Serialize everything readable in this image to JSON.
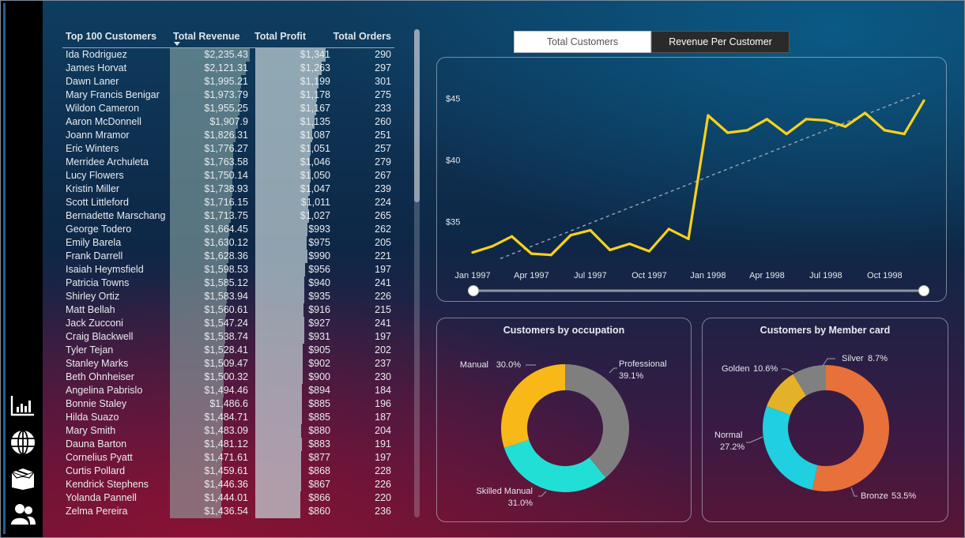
{
  "nav": {
    "items": [
      {
        "icon": "bar-chart-icon"
      },
      {
        "icon": "globe-icon"
      },
      {
        "icon": "box-icon"
      },
      {
        "icon": "users-icon"
      }
    ]
  },
  "table": {
    "headers": [
      "Top 100 Customers",
      "Total Revenue",
      "Total Profit",
      "Total Orders"
    ],
    "max_revenue": 2235.43,
    "max_profit": 1341,
    "rows": [
      {
        "name": "Ida Rodriguez",
        "revenue": "$2,235.43",
        "rev": 2235.43,
        "profit": "$1,341",
        "pro": 1341,
        "orders": "290"
      },
      {
        "name": "James Horvat",
        "revenue": "$2,121.31",
        "rev": 2121.31,
        "profit": "$1,263",
        "pro": 1263,
        "orders": "297"
      },
      {
        "name": "Dawn Laner",
        "revenue": "$1,995.21",
        "rev": 1995.21,
        "profit": "$1,199",
        "pro": 1199,
        "orders": "301"
      },
      {
        "name": "Mary Francis Benigar",
        "revenue": "$1,973.79",
        "rev": 1973.79,
        "profit": "$1,178",
        "pro": 1178,
        "orders": "275"
      },
      {
        "name": "Wildon Cameron",
        "revenue": "$1,955.25",
        "rev": 1955.25,
        "profit": "$1,167",
        "pro": 1167,
        "orders": "233"
      },
      {
        "name": "Aaron McDonnell",
        "revenue": "$1,907.9",
        "rev": 1907.9,
        "profit": "$1,135",
        "pro": 1135,
        "orders": "260"
      },
      {
        "name": "Joann Mramor",
        "revenue": "$1,826.31",
        "rev": 1826.31,
        "profit": "$1,087",
        "pro": 1087,
        "orders": "251"
      },
      {
        "name": "Eric Winters",
        "revenue": "$1,776.27",
        "rev": 1776.27,
        "profit": "$1,051",
        "pro": 1051,
        "orders": "257"
      },
      {
        "name": "Merridee Archuleta",
        "revenue": "$1,763.58",
        "rev": 1763.58,
        "profit": "$1,046",
        "pro": 1046,
        "orders": "279"
      },
      {
        "name": "Lucy Flowers",
        "revenue": "$1,750.14",
        "rev": 1750.14,
        "profit": "$1,050",
        "pro": 1050,
        "orders": "267"
      },
      {
        "name": "Kristin Miller",
        "revenue": "$1,738.93",
        "rev": 1738.93,
        "profit": "$1,047",
        "pro": 1047,
        "orders": "239"
      },
      {
        "name": "Scott Littleford",
        "revenue": "$1,716.15",
        "rev": 1716.15,
        "profit": "$1,011",
        "pro": 1011,
        "orders": "224"
      },
      {
        "name": "Bernadette Marschang",
        "revenue": "$1,713.75",
        "rev": 1713.75,
        "profit": "$1,027",
        "pro": 1027,
        "orders": "265"
      },
      {
        "name": "George Todero",
        "revenue": "$1,664.45",
        "rev": 1664.45,
        "profit": "$993",
        "pro": 993,
        "orders": "262"
      },
      {
        "name": "Emily Barela",
        "revenue": "$1,630.12",
        "rev": 1630.12,
        "profit": "$975",
        "pro": 975,
        "orders": "205"
      },
      {
        "name": "Frank Darrell",
        "revenue": "$1,628.36",
        "rev": 1628.36,
        "profit": "$990",
        "pro": 990,
        "orders": "221"
      },
      {
        "name": "Isaiah Heymsfield",
        "revenue": "$1,598.53",
        "rev": 1598.53,
        "profit": "$956",
        "pro": 956,
        "orders": "197"
      },
      {
        "name": "Patricia Towns",
        "revenue": "$1,585.12",
        "rev": 1585.12,
        "profit": "$940",
        "pro": 940,
        "orders": "241"
      },
      {
        "name": "Shirley Ortiz",
        "revenue": "$1,583.94",
        "rev": 1583.94,
        "profit": "$935",
        "pro": 935,
        "orders": "226"
      },
      {
        "name": "Matt Bellah",
        "revenue": "$1,560.61",
        "rev": 1560.61,
        "profit": "$916",
        "pro": 916,
        "orders": "215"
      },
      {
        "name": "Jack Zucconi",
        "revenue": "$1,547.24",
        "rev": 1547.24,
        "profit": "$927",
        "pro": 927,
        "orders": "241"
      },
      {
        "name": "Craig Blackwell",
        "revenue": "$1,538.74",
        "rev": 1538.74,
        "profit": "$931",
        "pro": 931,
        "orders": "197"
      },
      {
        "name": "Tyler Tejan",
        "revenue": "$1,528.41",
        "rev": 1528.41,
        "profit": "$905",
        "pro": 905,
        "orders": "202"
      },
      {
        "name": "Stanley Marks",
        "revenue": "$1,509.47",
        "rev": 1509.47,
        "profit": "$902",
        "pro": 902,
        "orders": "237"
      },
      {
        "name": "Beth Ohnheiser",
        "revenue": "$1,500.32",
        "rev": 1500.32,
        "profit": "$900",
        "pro": 900,
        "orders": "230"
      },
      {
        "name": "Angelina Pabrislo",
        "revenue": "$1,494.46",
        "rev": 1494.46,
        "profit": "$894",
        "pro": 894,
        "orders": "184"
      },
      {
        "name": "Bonnie Staley",
        "revenue": "$1,486.6",
        "rev": 1486.6,
        "profit": "$885",
        "pro": 885,
        "orders": "196"
      },
      {
        "name": "Hilda Suazo",
        "revenue": "$1,484.71",
        "rev": 1484.71,
        "profit": "$885",
        "pro": 885,
        "orders": "187"
      },
      {
        "name": "Mary Smith",
        "revenue": "$1,483.09",
        "rev": 1483.09,
        "profit": "$880",
        "pro": 880,
        "orders": "204"
      },
      {
        "name": "Dauna Barton",
        "revenue": "$1,481.12",
        "rev": 1481.12,
        "profit": "$883",
        "pro": 883,
        "orders": "191"
      },
      {
        "name": "Cornelius Pyatt",
        "revenue": "$1,471.61",
        "rev": 1471.61,
        "profit": "$877",
        "pro": 877,
        "orders": "197"
      },
      {
        "name": "Curtis Pollard",
        "revenue": "$1,459.61",
        "rev": 1459.61,
        "profit": "$868",
        "pro": 868,
        "orders": "228"
      },
      {
        "name": "Kendrick Stephens",
        "revenue": "$1,446.36",
        "rev": 1446.36,
        "profit": "$867",
        "pro": 867,
        "orders": "226"
      },
      {
        "name": "Yolanda Pannell",
        "revenue": "$1,444.01",
        "rev": 1444.01,
        "profit": "$866",
        "pro": 866,
        "orders": "220"
      },
      {
        "name": "Zelma Pereira",
        "revenue": "$1,436.54",
        "rev": 1436.54,
        "profit": "$860",
        "pro": 860,
        "orders": "236"
      }
    ]
  },
  "toggle": {
    "total_customers": "Total Customers",
    "revenue_per_customer": "Revenue Per Customer"
  },
  "colors": {
    "line": "#f7d21a",
    "trend": "#9aa6b2",
    "professional": "#7f7f7f",
    "manual": "#f8b817",
    "skilled_manual": "#22dfd6",
    "bronze": "#e8703a",
    "normal": "#20cfe0",
    "golden": "#e3b228",
    "silver": "#808080"
  },
  "chart_data": [
    {
      "type": "line",
      "y_tick_labels": [
        "$35",
        "$40",
        "$45"
      ],
      "x_tick_labels": [
        "Jan 1997",
        "Apr 1997",
        "Jul 1997",
        "Oct 1997",
        "Jan 1998",
        "Apr 1998",
        "Jul 1998",
        "Oct 1998"
      ],
      "x": [
        "1997-01",
        "1997-02",
        "1997-03",
        "1997-04",
        "1997-05",
        "1997-06",
        "1997-07",
        "1997-08",
        "1997-09",
        "1997-10",
        "1997-11",
        "1997-12",
        "1998-01",
        "1998-02",
        "1998-03",
        "1998-04",
        "1998-05",
        "1998-06",
        "1998-07",
        "1998-08",
        "1998-09",
        "1998-10",
        "1998-11",
        "1998-12"
      ],
      "values": [
        32.5,
        33.0,
        33.8,
        32.4,
        32.3,
        33.9,
        34.3,
        32.7,
        33.2,
        32.6,
        34.4,
        33.6,
        43.6,
        42.2,
        42.4,
        43.3,
        42.1,
        43.3,
        43.2,
        42.7,
        43.8,
        42.4,
        42.1,
        44.8
      ],
      "trend": [
        32.0,
        45.4
      ],
      "ylim": [
        31,
        47
      ],
      "grid": false
    },
    {
      "type": "pie",
      "title": "Customers by occupation",
      "slices": [
        {
          "label": "Professional",
          "pct_label": "39.1%",
          "value": 39.1
        },
        {
          "label": "Skilled Manual",
          "pct_label": "31.0%",
          "value": 31.0
        },
        {
          "label": "Manual",
          "pct_label": "30.0%",
          "value": 30.0
        }
      ]
    },
    {
      "type": "pie",
      "title": "Customers by Member card",
      "slices": [
        {
          "label": "Bronze",
          "pct_label": "53.5%",
          "value": 53.5
        },
        {
          "label": "Normal",
          "pct_label": "27.2%",
          "value": 27.2
        },
        {
          "label": "Golden",
          "pct_label": "10.6%",
          "value": 10.6
        },
        {
          "label": "Silver",
          "pct_label": "8.7%",
          "value": 8.7
        }
      ]
    }
  ]
}
